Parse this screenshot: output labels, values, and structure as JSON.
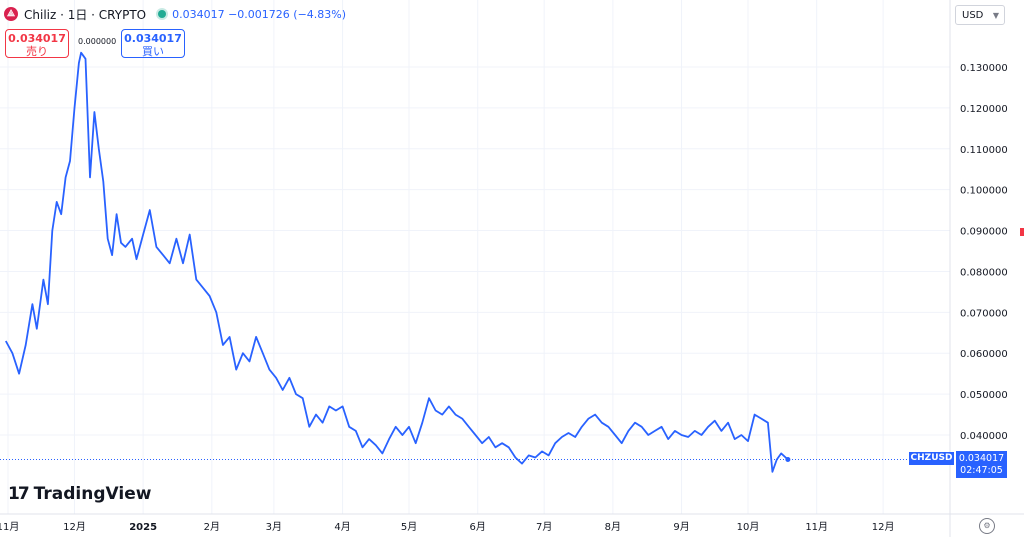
{
  "header": {
    "symbol_line": "Chiliz · 1日 · CRYPTO",
    "quote_line": "0.034017 −0.001726 (−4.83%)"
  },
  "trade": {
    "sell_price": "0.034017",
    "sell_label": "売り",
    "buy_price": "0.034017",
    "buy_label": "買い",
    "spread": "0.000000"
  },
  "currency": "USD",
  "brand": "TradingView",
  "last_price": {
    "symbol": "CHZUSD",
    "price": "0.034017",
    "countdown": "02:47:05"
  },
  "colors": {
    "line": "#2962ff",
    "sell": "#f23645",
    "buy": "#2962ff"
  },
  "chart_data": {
    "type": "line",
    "y_ticks": [
      "0.130000",
      "0.120000",
      "0.110000",
      "0.100000",
      "0.090000",
      "0.080000",
      "0.070000",
      "0.060000",
      "0.050000",
      "0.040000"
    ],
    "y_tick_values": [
      0.13,
      0.12,
      0.11,
      0.1,
      0.09,
      0.08,
      0.07,
      0.06,
      0.05,
      0.04
    ],
    "x_ticks": [
      {
        "label": "11月",
        "date": "2024-11-01"
      },
      {
        "label": "12月",
        "date": "2024-12-01"
      },
      {
        "label": "2025",
        "date": "2025-01-01"
      },
      {
        "label": "2月",
        "date": "2025-02-01"
      },
      {
        "label": "3月",
        "date": "2025-03-01"
      },
      {
        "label": "4月",
        "date": "2025-04-01"
      },
      {
        "label": "5月",
        "date": "2025-05-01"
      },
      {
        "label": "6月",
        "date": "2025-06-01"
      },
      {
        "label": "7月",
        "date": "2025-07-01"
      },
      {
        "label": "8月",
        "date": "2025-08-01"
      },
      {
        "label": "9月",
        "date": "2025-09-01"
      },
      {
        "label": "10月",
        "date": "2025-10-01"
      },
      {
        "label": "11月",
        "date": "2025-11-01"
      },
      {
        "label": "12月",
        "date": "2025-12-01"
      }
    ],
    "last_value": 0.034017,
    "series": [
      {
        "points": [
          [
            "2024-10-31",
            0.063
          ],
          [
            "2024-11-03",
            0.06
          ],
          [
            "2024-11-06",
            0.055
          ],
          [
            "2024-11-09",
            0.062
          ],
          [
            "2024-11-12",
            0.072
          ],
          [
            "2024-11-14",
            0.066
          ],
          [
            "2024-11-17",
            0.078
          ],
          [
            "2024-11-19",
            0.072
          ],
          [
            "2024-11-21",
            0.09
          ],
          [
            "2024-11-23",
            0.097
          ],
          [
            "2024-11-25",
            0.094
          ],
          [
            "2024-11-27",
            0.103
          ],
          [
            "2024-11-29",
            0.107
          ],
          [
            "2024-12-01",
            0.12
          ],
          [
            "2024-12-03",
            0.131
          ],
          [
            "2024-12-04",
            0.1335
          ],
          [
            "2024-12-06",
            0.132
          ],
          [
            "2024-12-08",
            0.103
          ],
          [
            "2024-12-10",
            0.119
          ],
          [
            "2024-12-12",
            0.11
          ],
          [
            "2024-12-14",
            0.102
          ],
          [
            "2024-12-16",
            0.088
          ],
          [
            "2024-12-18",
            0.084
          ],
          [
            "2024-12-20",
            0.094
          ],
          [
            "2024-12-22",
            0.087
          ],
          [
            "2024-12-24",
            0.086
          ],
          [
            "2024-12-27",
            0.088
          ],
          [
            "2024-12-29",
            0.083
          ],
          [
            "2025-01-01",
            0.089
          ],
          [
            "2025-01-04",
            0.095
          ],
          [
            "2025-01-07",
            0.086
          ],
          [
            "2025-01-10",
            0.084
          ],
          [
            "2025-01-13",
            0.082
          ],
          [
            "2025-01-16",
            0.088
          ],
          [
            "2025-01-19",
            0.082
          ],
          [
            "2025-01-22",
            0.089
          ],
          [
            "2025-01-25",
            0.078
          ],
          [
            "2025-01-28",
            0.076
          ],
          [
            "2025-01-31",
            0.074
          ],
          [
            "2025-02-03",
            0.07
          ],
          [
            "2025-02-06",
            0.062
          ],
          [
            "2025-02-09",
            0.064
          ],
          [
            "2025-02-12",
            0.056
          ],
          [
            "2025-02-15",
            0.06
          ],
          [
            "2025-02-18",
            0.058
          ],
          [
            "2025-02-21",
            0.064
          ],
          [
            "2025-02-24",
            0.06
          ],
          [
            "2025-02-27",
            0.056
          ],
          [
            "2025-03-02",
            0.054
          ],
          [
            "2025-03-05",
            0.051
          ],
          [
            "2025-03-08",
            0.054
          ],
          [
            "2025-03-11",
            0.05
          ],
          [
            "2025-03-14",
            0.049
          ],
          [
            "2025-03-17",
            0.042
          ],
          [
            "2025-03-20",
            0.045
          ],
          [
            "2025-03-23",
            0.043
          ],
          [
            "2025-03-26",
            0.047
          ],
          [
            "2025-03-29",
            0.046
          ],
          [
            "2025-04-01",
            0.047
          ],
          [
            "2025-04-04",
            0.042
          ],
          [
            "2025-04-07",
            0.041
          ],
          [
            "2025-04-10",
            0.037
          ],
          [
            "2025-04-13",
            0.039
          ],
          [
            "2025-04-16",
            0.0375
          ],
          [
            "2025-04-19",
            0.0355
          ],
          [
            "2025-04-22",
            0.039
          ],
          [
            "2025-04-25",
            0.042
          ],
          [
            "2025-04-28",
            0.04
          ],
          [
            "2025-05-01",
            0.042
          ],
          [
            "2025-05-04",
            0.038
          ],
          [
            "2025-05-07",
            0.043
          ],
          [
            "2025-05-10",
            0.049
          ],
          [
            "2025-05-13",
            0.046
          ],
          [
            "2025-05-16",
            0.045
          ],
          [
            "2025-05-19",
            0.047
          ],
          [
            "2025-05-22",
            0.045
          ],
          [
            "2025-05-25",
            0.044
          ],
          [
            "2025-05-28",
            0.042
          ],
          [
            "2025-05-31",
            0.04
          ],
          [
            "2025-06-03",
            0.038
          ],
          [
            "2025-06-06",
            0.0395
          ],
          [
            "2025-06-09",
            0.037
          ],
          [
            "2025-06-12",
            0.038
          ],
          [
            "2025-06-15",
            0.037
          ],
          [
            "2025-06-18",
            0.0345
          ],
          [
            "2025-06-21",
            0.033
          ],
          [
            "2025-06-24",
            0.035
          ],
          [
            "2025-06-27",
            0.0345
          ],
          [
            "2025-06-30",
            0.036
          ],
          [
            "2025-07-03",
            0.035
          ],
          [
            "2025-07-06",
            0.038
          ],
          [
            "2025-07-09",
            0.0395
          ],
          [
            "2025-07-12",
            0.0405
          ],
          [
            "2025-07-15",
            0.0395
          ],
          [
            "2025-07-18",
            0.042
          ],
          [
            "2025-07-21",
            0.044
          ],
          [
            "2025-07-24",
            0.045
          ],
          [
            "2025-07-27",
            0.043
          ],
          [
            "2025-07-30",
            0.042
          ],
          [
            "2025-08-02",
            0.04
          ],
          [
            "2025-08-05",
            0.038
          ],
          [
            "2025-08-08",
            0.041
          ],
          [
            "2025-08-11",
            0.043
          ],
          [
            "2025-08-14",
            0.042
          ],
          [
            "2025-08-17",
            0.04
          ],
          [
            "2025-08-20",
            0.041
          ],
          [
            "2025-08-23",
            0.042
          ],
          [
            "2025-08-26",
            0.039
          ],
          [
            "2025-08-29",
            0.041
          ],
          [
            "2025-09-01",
            0.04
          ],
          [
            "2025-09-04",
            0.0395
          ],
          [
            "2025-09-07",
            0.041
          ],
          [
            "2025-09-10",
            0.04
          ],
          [
            "2025-09-13",
            0.042
          ],
          [
            "2025-09-16",
            0.0435
          ],
          [
            "2025-09-19",
            0.041
          ],
          [
            "2025-09-22",
            0.043
          ],
          [
            "2025-09-25",
            0.039
          ],
          [
            "2025-09-28",
            0.04
          ],
          [
            "2025-10-01",
            0.0385
          ],
          [
            "2025-10-04",
            0.045
          ],
          [
            "2025-10-07",
            0.044
          ],
          [
            "2025-10-10",
            0.043
          ],
          [
            "2025-10-12",
            0.031
          ],
          [
            "2025-10-14",
            0.034
          ],
          [
            "2025-10-16",
            0.0355
          ],
          [
            "2025-10-19",
            0.034
          ]
        ]
      }
    ]
  }
}
